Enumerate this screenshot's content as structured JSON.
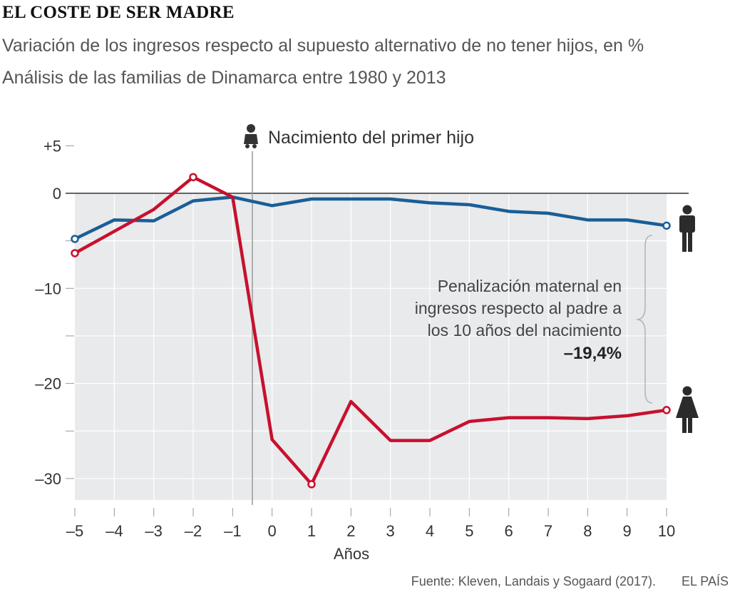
{
  "title": "EL COSTE DE SER MADRE",
  "subtitle1": "Variación de los ingresos respecto al supuesto alternativo de no tener hijos, en %",
  "subtitle2": "Análisis de las familias de Dinamarca entre 1980 y 2013",
  "chart_data": {
    "type": "line",
    "xlabel": "Años",
    "ylabel": "",
    "x": [
      -5,
      -4,
      -3,
      -2,
      -1,
      0,
      1,
      2,
      3,
      4,
      5,
      6,
      7,
      8,
      9,
      10
    ],
    "xtick_labels": [
      "–5",
      "–4",
      "–3",
      "–2",
      "–1",
      "0",
      "1",
      "2",
      "3",
      "4",
      "5",
      "6",
      "7",
      "8",
      "9",
      "10"
    ],
    "yticks": [
      5,
      0,
      -5,
      -10,
      -15,
      -20,
      -25,
      -30
    ],
    "ytick_labels": [
      "+5",
      "0",
      "",
      "–10",
      "",
      "–20",
      "",
      "–30"
    ],
    "ylim": [
      -33,
      6
    ],
    "xlim": [
      -5,
      10
    ],
    "grid": true,
    "series": [
      {
        "key": "father",
        "color": "#1a5e96",
        "values": [
          -4.8,
          -2.8,
          -2.9,
          -0.8,
          -0.4,
          -1.3,
          -0.6,
          -0.6,
          -0.6,
          -1.0,
          -1.2,
          -1.9,
          -2.1,
          -2.8,
          -2.8,
          -3.4
        ]
      },
      {
        "key": "mother",
        "color": "#c8102e",
        "values": [
          -6.3,
          -4.0,
          -1.7,
          1.7,
          -0.4,
          -25.9,
          -30.6,
          -21.9,
          -26.0,
          -26.0,
          -24.0,
          -23.6,
          -23.6,
          -23.7,
          -23.4,
          -22.8
        ]
      }
    ],
    "event_x": -0.5,
    "event_label": "Nacimiento del primer hijo",
    "annotation": {
      "lines": [
        "Penalización maternal en",
        "ingresos respecto al padre a",
        "los 10 años del nacimiento"
      ],
      "value": "–19,4%"
    }
  },
  "footer": {
    "source": "Fuente: Kleven, Landais y Sogaard (2017).",
    "brand": "EL PAÍS"
  },
  "icons": {
    "baby": "baby-icon",
    "man": "man-icon",
    "woman": "woman-icon"
  },
  "colors": {
    "father": "#1a5e96",
    "mother": "#c8102e",
    "shade": "#e8eaec"
  }
}
